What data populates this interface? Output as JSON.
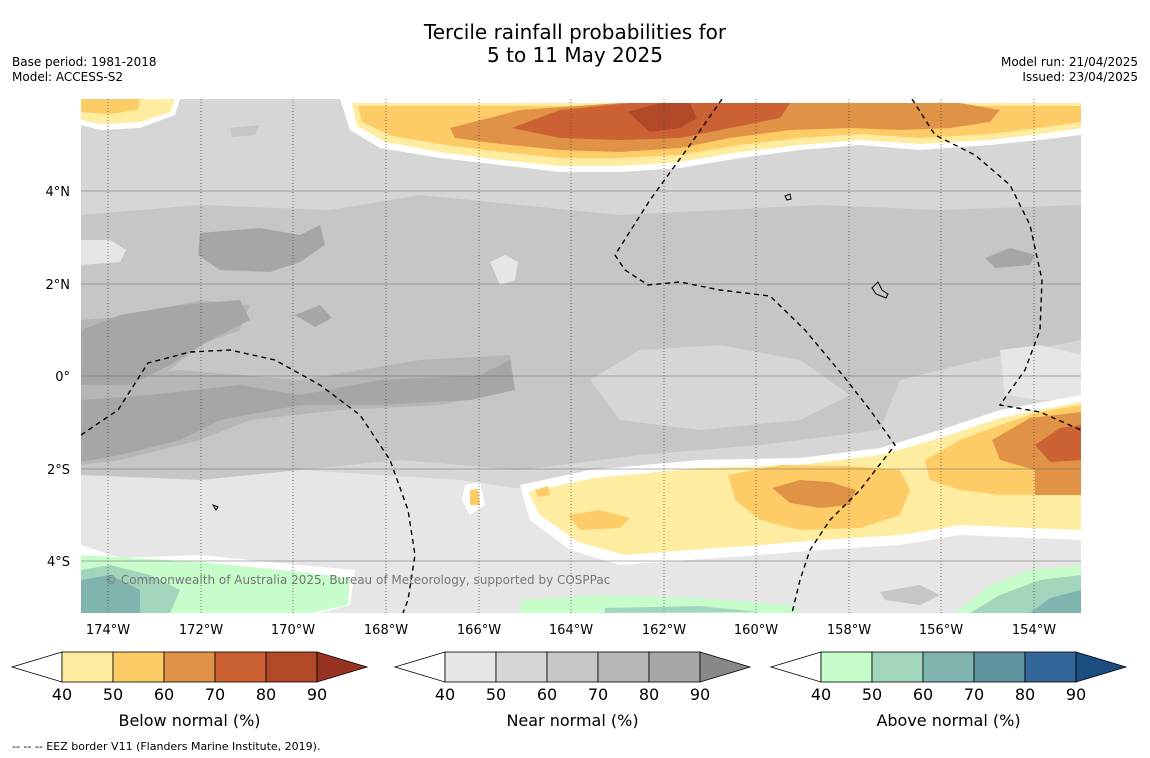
{
  "header": {
    "title_line1": "Tercile rainfall probabilities for",
    "title_line2": "5 to 11 May 2025",
    "base_period": "Base period: 1981-2018",
    "model": "Model: ACCESS-S2",
    "model_run": "Model run: 21/04/2025",
    "issued": "Issued: 23/04/2025"
  },
  "map": {
    "lat_labels": [
      "4°N",
      "2°N",
      "0°",
      "2°S",
      "4°S"
    ],
    "lon_labels": [
      "174°W",
      "172°W",
      "170°W",
      "168°W",
      "166°W",
      "164°W",
      "162°W",
      "160°W",
      "158°W",
      "156°W",
      "154°W"
    ],
    "copyright": "© Commonwealth of Australia 2025, Bureau of Meteorology, supported by COSPPac",
    "colors": {
      "near_40": "#e6e6e6",
      "near_50": "#d6d6d6",
      "near_60": "#c6c6c6",
      "near_70": "#b6b6b6",
      "near_80": "#a6a6a6",
      "below_40": "#feeda0",
      "below_50": "#fecc66",
      "below_60": "#e09346",
      "below_70": "#cc6133",
      "below_80": "#af4927",
      "above_40": "#c6fdca",
      "above_50": "#a2d6bc",
      "above_60": "#80b4ae",
      "above_70": "#5e939e"
    }
  },
  "colorbars": [
    {
      "label": "Below normal (%)",
      "ticks": [
        "40",
        "50",
        "60",
        "70",
        "80",
        "90"
      ],
      "colors": [
        "#feeda0",
        "#fecc66",
        "#e09346",
        "#cc6133",
        "#af4927"
      ],
      "extend": "#993321"
    },
    {
      "label": "Near normal (%)",
      "ticks": [
        "40",
        "50",
        "60",
        "70",
        "80",
        "90"
      ],
      "colors": [
        "#e6e6e6",
        "#d6d6d6",
        "#c6c6c6",
        "#b6b6b6",
        "#a6a6a6"
      ],
      "extend": "#888888"
    },
    {
      "label": "Above normal (%)",
      "ticks": [
        "40",
        "50",
        "60",
        "70",
        "80",
        "90"
      ],
      "colors": [
        "#c6fdca",
        "#a2d6bc",
        "#80b4ae",
        "#5e939e",
        "#336699"
      ],
      "extend": "#1a4d80"
    }
  ],
  "footer": {
    "eez_note": "--  --  -- EEZ border V11 (Flanders Marine Institute, 2019)."
  }
}
